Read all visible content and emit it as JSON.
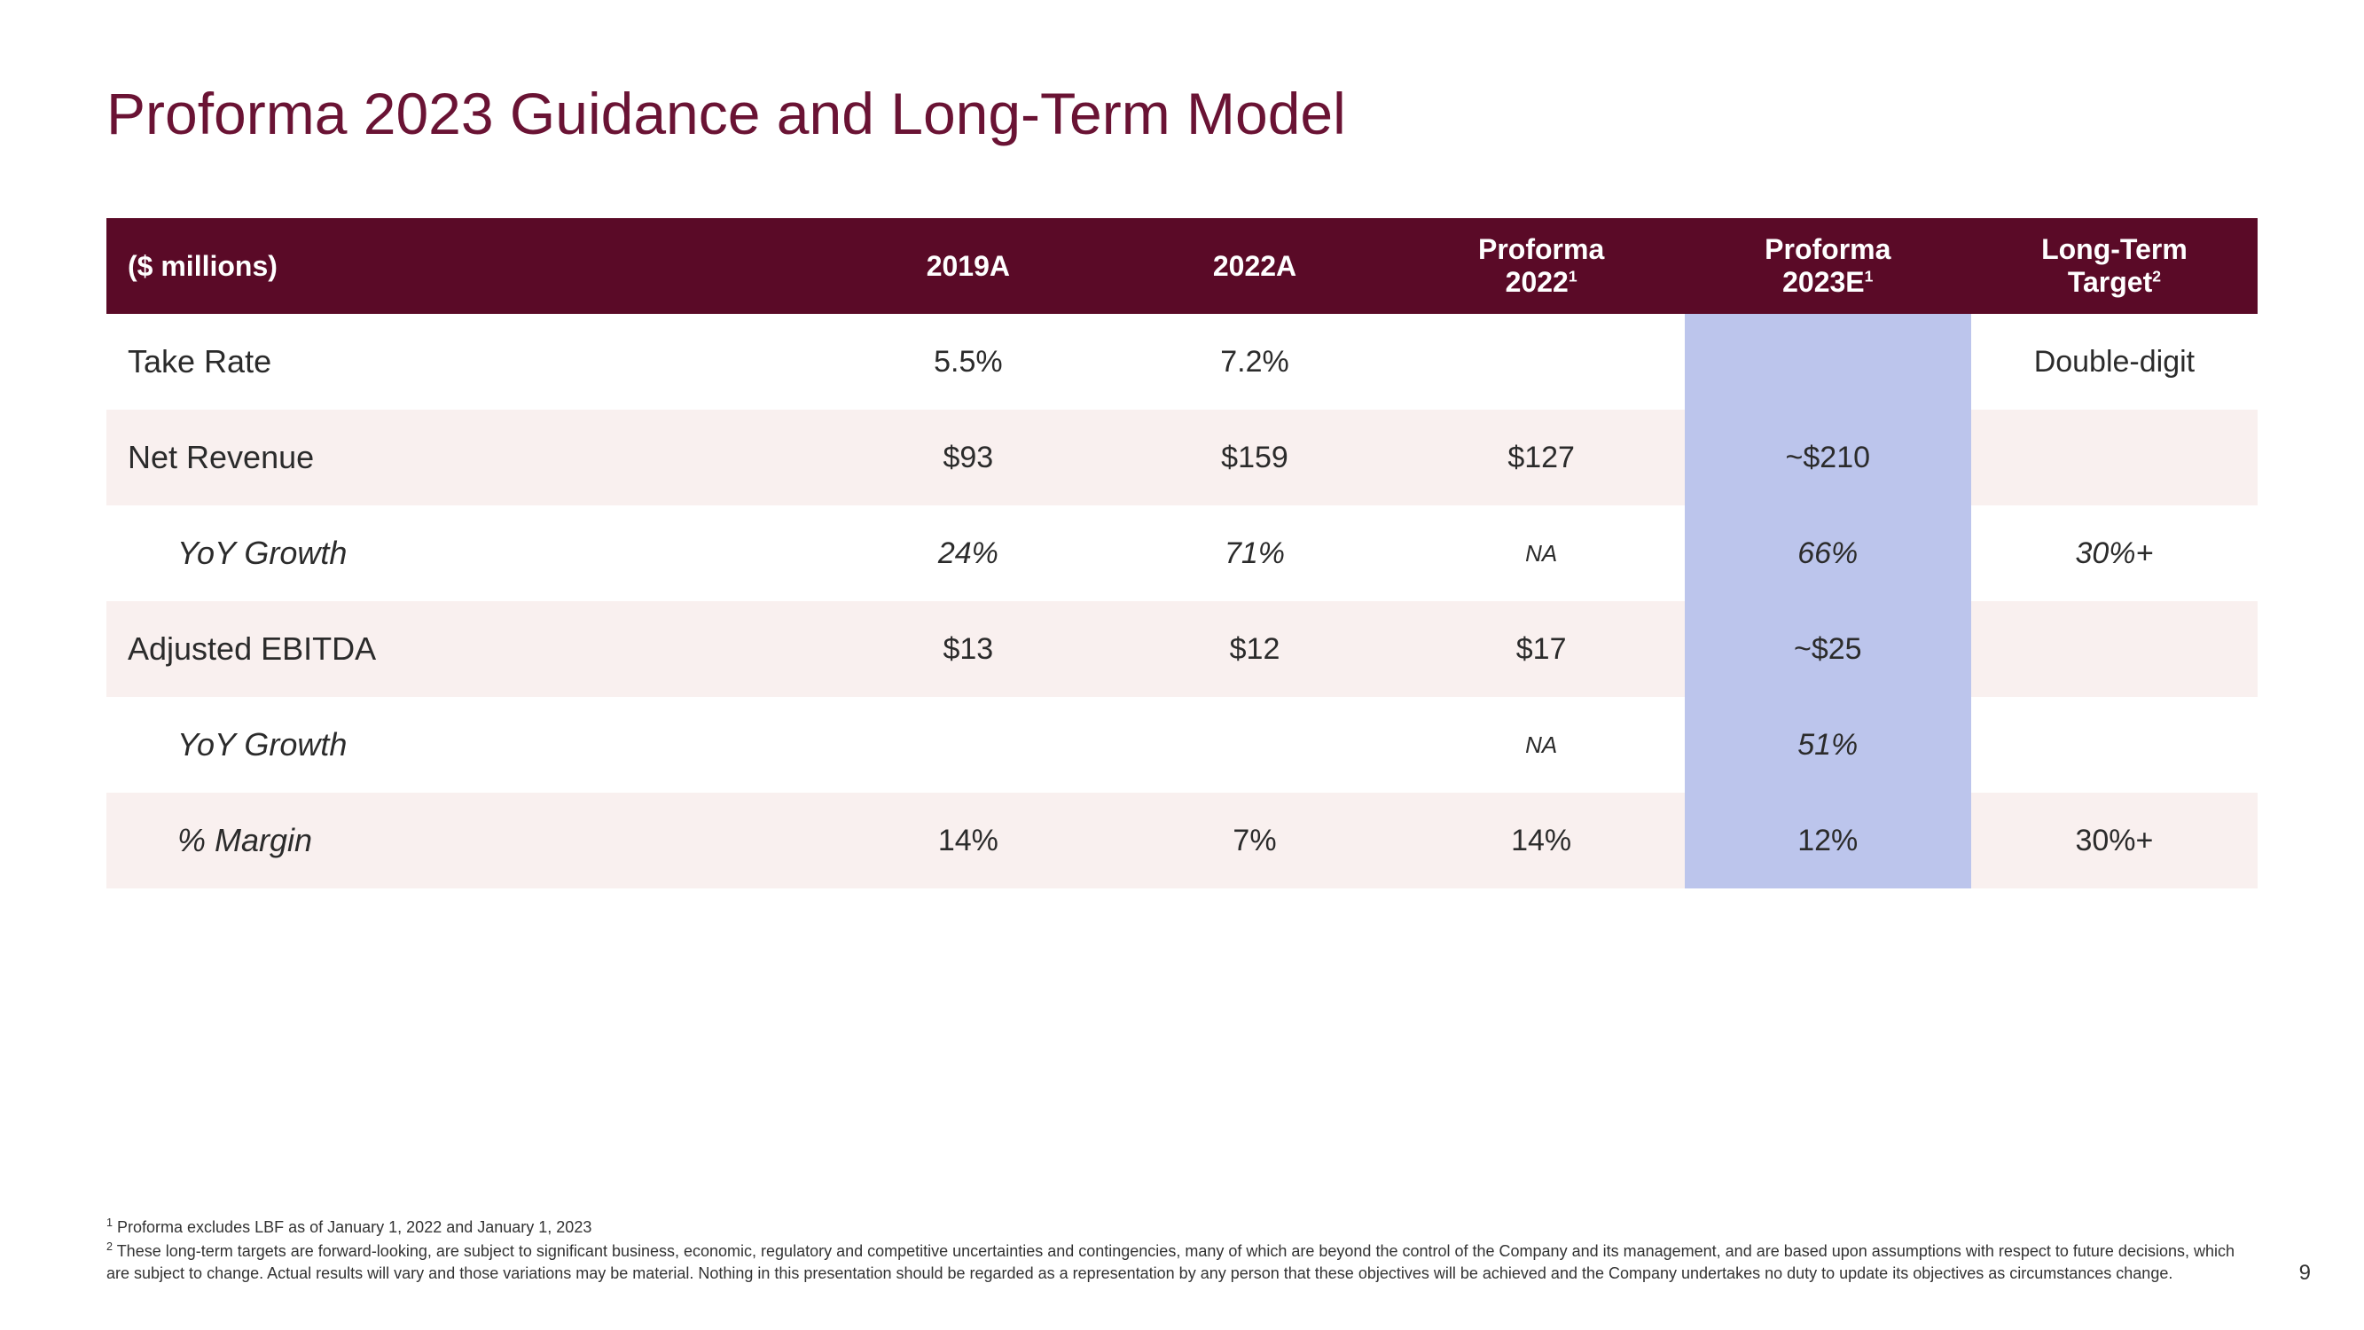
{
  "page": {
    "number": "9"
  },
  "title": {
    "text": "Proforma 2023 Guidance and Long-Term Model",
    "color": "#6a1334"
  },
  "colors": {
    "header_bg": "#5a0a27",
    "header_text": "#ffffff",
    "row_odd": "#ffffff",
    "row_even": "#f9f0ef",
    "highlight": "#bcc5ec",
    "text": "#2b2b2b"
  },
  "table": {
    "columns": [
      {
        "key": "label",
        "header": "($ millions)",
        "align": "left"
      },
      {
        "key": "c2019a",
        "header": "2019A"
      },
      {
        "key": "c2022a",
        "header": "2022A"
      },
      {
        "key": "pf2022",
        "header": "Proforma 2022",
        "sup": "1",
        "highlight": false
      },
      {
        "key": "pf2023e",
        "header": "Proforma 2023E",
        "sup": "1",
        "highlight": true
      },
      {
        "key": "lt",
        "header": "Long-Term Target",
        "sup": "2"
      }
    ],
    "rows": [
      {
        "label": "Take Rate",
        "indent": false,
        "italic": false,
        "cells": [
          "5.5%",
          "7.2%",
          "",
          "",
          "Double-digit"
        ]
      },
      {
        "label": "Net Revenue",
        "indent": false,
        "italic": false,
        "cells": [
          "$93",
          "$159",
          "$127",
          "~$210",
          ""
        ]
      },
      {
        "label": "YoY Growth",
        "indent": true,
        "italic": true,
        "cells": [
          "24%",
          "71%",
          "NA",
          "66%",
          "30%+"
        ],
        "small_idx": [
          2
        ]
      },
      {
        "label": "Adjusted EBITDA",
        "indent": false,
        "italic": false,
        "cells": [
          "$13",
          "$12",
          "$17",
          "~$25",
          ""
        ]
      },
      {
        "label": "YoY Growth",
        "indent": true,
        "italic": true,
        "cells": [
          "",
          "",
          "NA",
          "51%",
          ""
        ],
        "small_idx": [
          2
        ]
      },
      {
        "label": "% Margin",
        "indent": true,
        "italic": false,
        "cells": [
          "14%",
          "7%",
          "14%",
          "12%",
          "30%+"
        ]
      }
    ]
  },
  "footnotes": [
    {
      "num": "1",
      "text": "Proforma excludes LBF as of January 1, 2022 and January 1, 2023"
    },
    {
      "num": "2",
      "text": "These long-term targets are forward-looking, are subject to significant business, economic, regulatory and competitive uncertainties and contingencies, many of which are beyond the control of the Company and its management, and are based upon assumptions with respect to future decisions, which are subject to change. Actual results will vary and those variations may be material. Nothing in this presentation should be regarded as a representation by any person that these objectives will be achieved and the Company undertakes no duty to update its objectives as circumstances change."
    }
  ]
}
